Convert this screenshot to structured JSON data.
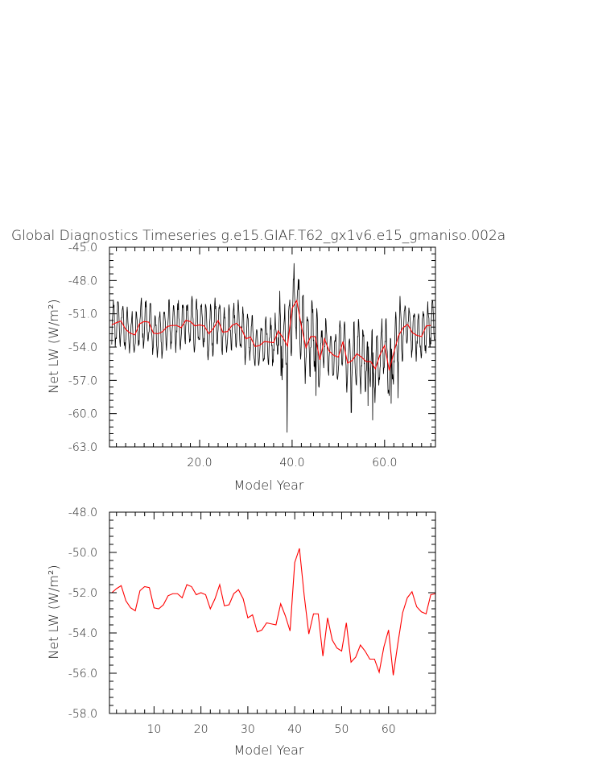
{
  "figure": {
    "title": "Global Diagnostics Timeseries g.e15.GIAF.T62_gx1v6.e15_gmaniso.002a"
  },
  "chart_data": [
    {
      "type": "line",
      "xlabel": "Model Year",
      "ylabel": "Net LW (W/m²)",
      "xlim": [
        0.5,
        71
      ],
      "ylim": [
        -63.0,
        -45.0
      ],
      "xticks": [
        20.0,
        40.0,
        60.0
      ],
      "xtick_labels": [
        "20.0",
        "40.0",
        "60.0"
      ],
      "yticks": [
        -63.0,
        -60.0,
        -57.0,
        -54.0,
        -51.0,
        -48.0,
        -45.0
      ],
      "ytick_labels": [
        "-63.0",
        "-60.0",
        "-57.0",
        "-54.0",
        "-51.0",
        "-48.0",
        "-45.0"
      ],
      "grid": false,
      "series": [
        {
          "color": "#000000",
          "kind": "monthly",
          "amplitude": 1.9,
          "events": [
            {
              "x": 38.9,
              "y": -61.7
            },
            {
              "x": 37.6,
              "y": -56.6
            },
            {
              "x": 40.3,
              "y": -47.9
            },
            {
              "x": 41.5,
              "y": -47.9
            },
            {
              "x": 45.2,
              "y": -58.4
            },
            {
              "x": 52.8,
              "y": -59.9
            },
            {
              "x": 56.4,
              "y": -59.3
            },
            {
              "x": 57.4,
              "y": -60.6
            },
            {
              "x": 61.4,
              "y": -59.1
            },
            {
              "x": 62.9,
              "y": -58.6
            }
          ]
        },
        {
          "color": "#ff0000",
          "kind": "annual",
          "ref": "annual_mean"
        }
      ]
    },
    {
      "type": "line",
      "xlabel": "Model Year",
      "ylabel": "Net LW (W/m²)",
      "xlim": [
        0.5,
        70
      ],
      "ylim": [
        -58.0,
        -48.0
      ],
      "xticks": [
        10,
        20,
        30,
        40,
        50,
        60
      ],
      "xtick_labels": [
        "10",
        "20",
        "30",
        "40",
        "50",
        "60"
      ],
      "yticks": [
        -58.0,
        -56.0,
        -54.0,
        -52.0,
        -50.0,
        -48.0
      ],
      "ytick_labels": [
        "-58.0",
        "-56.0",
        "-54.0",
        "-52.0",
        "-50.0",
        "-48.0"
      ],
      "grid": false,
      "series": [
        {
          "color": "#ff0000",
          "kind": "annual",
          "ref": "annual_mean"
        }
      ]
    }
  ],
  "annual_mean": {
    "x": [
      1,
      2,
      3,
      4,
      5,
      6,
      7,
      8,
      9,
      10,
      11,
      12,
      13,
      14,
      15,
      16,
      17,
      18,
      19,
      20,
      21,
      22,
      23,
      24,
      25,
      26,
      27,
      28,
      29,
      30,
      31,
      32,
      33,
      34,
      35,
      36,
      37,
      38,
      39,
      40,
      41,
      42,
      43,
      44,
      45,
      46,
      47,
      48,
      49,
      50,
      51,
      52,
      53,
      54,
      55,
      56,
      57,
      58,
      59,
      60,
      61,
      62,
      63,
      64,
      65,
      66,
      67,
      68,
      69,
      70
    ],
    "y": [
      -52.0,
      -51.8,
      -51.65,
      -52.4,
      -52.75,
      -52.9,
      -51.9,
      -51.7,
      -51.75,
      -52.75,
      -52.8,
      -52.6,
      -52.15,
      -52.05,
      -52.05,
      -52.25,
      -51.6,
      -51.7,
      -52.1,
      -52.0,
      -52.1,
      -52.8,
      -52.3,
      -51.6,
      -52.65,
      -52.6,
      -52.05,
      -51.85,
      -52.3,
      -53.25,
      -53.1,
      -53.95,
      -53.85,
      -53.5,
      -53.55,
      -53.6,
      -52.55,
      -53.15,
      -53.9,
      -50.5,
      -49.8,
      -52.1,
      -54.05,
      -53.05,
      -53.05,
      -55.15,
      -53.25,
      -54.35,
      -54.75,
      -54.9,
      -53.5,
      -55.45,
      -55.2,
      -54.6,
      -54.9,
      -55.3,
      -55.3,
      -55.95,
      -54.7,
      -53.85,
      -56.1,
      -54.5,
      -53.0,
      -52.25,
      -51.95,
      -52.7,
      -52.95,
      -53.05,
      -52.1,
      -52.05
    ]
  }
}
